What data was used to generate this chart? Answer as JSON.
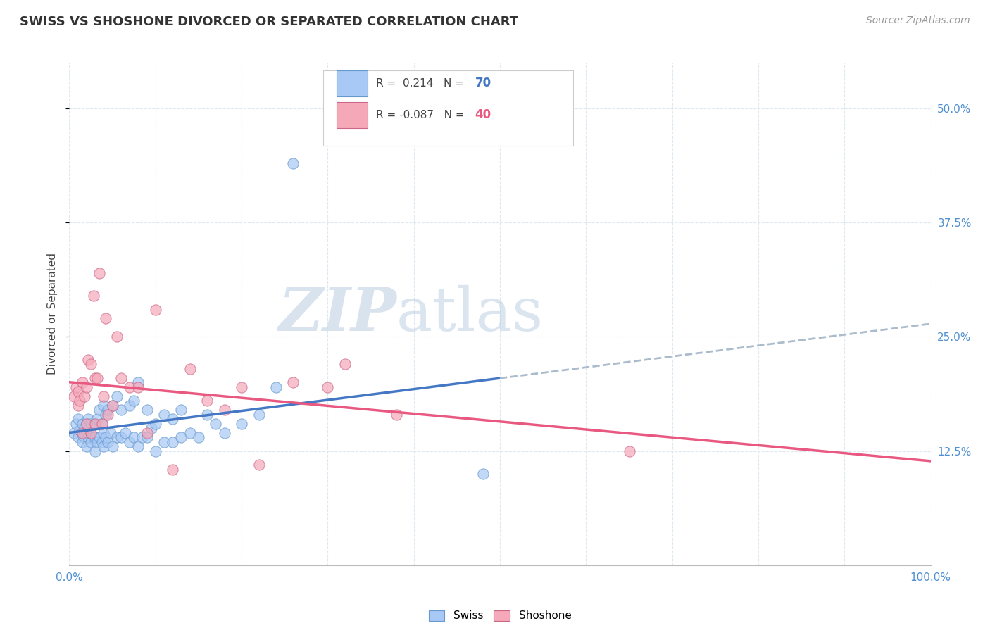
{
  "title": "SWISS VS SHOSHONE DIVORCED OR SEPARATED CORRELATION CHART",
  "source_text": "Source: ZipAtlas.com",
  "ylabel": "Divorced or Separated",
  "xlim": [
    0.0,
    1.0
  ],
  "ylim": [
    0.0,
    0.55
  ],
  "ytick_values": [
    0.125,
    0.25,
    0.375,
    0.5
  ],
  "ytick_labels": [
    "12.5%",
    "25.0%",
    "37.5%",
    "50.0%"
  ],
  "xtick_values": [
    0.0,
    0.1,
    0.2,
    0.3,
    0.4,
    0.5,
    0.6,
    0.7,
    0.8,
    0.9,
    1.0
  ],
  "xtick_show": [
    0.0,
    1.0
  ],
  "legend_r_swiss": "0.214",
  "legend_n_swiss": "70",
  "legend_r_shoshone": "-0.087",
  "legend_n_shoshone": "40",
  "swiss_color": "#a8c8f5",
  "shoshone_color": "#f5a8b8",
  "swiss_line_color": "#4478c4",
  "shoshone_line_color": "#e85880",
  "dashed_line_color": "#aabbcc",
  "background_color": "#ffffff",
  "grid_color": "#dde8f0",
  "watermark_zip": "ZIP",
  "watermark_atlas": "atlas",
  "swiss_scatter_x": [
    0.005,
    0.008,
    0.01,
    0.01,
    0.012,
    0.015,
    0.015,
    0.016,
    0.018,
    0.02,
    0.02,
    0.02,
    0.022,
    0.022,
    0.025,
    0.025,
    0.025,
    0.028,
    0.03,
    0.03,
    0.03,
    0.032,
    0.032,
    0.035,
    0.035,
    0.038,
    0.038,
    0.04,
    0.04,
    0.04,
    0.042,
    0.042,
    0.045,
    0.045,
    0.048,
    0.05,
    0.05,
    0.055,
    0.055,
    0.06,
    0.06,
    0.065,
    0.07,
    0.07,
    0.075,
    0.075,
    0.08,
    0.08,
    0.085,
    0.09,
    0.09,
    0.095,
    0.1,
    0.1,
    0.11,
    0.11,
    0.12,
    0.12,
    0.13,
    0.13,
    0.14,
    0.15,
    0.16,
    0.17,
    0.18,
    0.2,
    0.22,
    0.24,
    0.26,
    0.48
  ],
  "swiss_scatter_y": [
    0.145,
    0.155,
    0.14,
    0.16,
    0.148,
    0.135,
    0.155,
    0.142,
    0.15,
    0.13,
    0.145,
    0.155,
    0.14,
    0.16,
    0.135,
    0.145,
    0.155,
    0.14,
    0.125,
    0.14,
    0.155,
    0.135,
    0.16,
    0.14,
    0.17,
    0.135,
    0.155,
    0.13,
    0.145,
    0.175,
    0.14,
    0.165,
    0.135,
    0.17,
    0.145,
    0.13,
    0.175,
    0.14,
    0.185,
    0.14,
    0.17,
    0.145,
    0.135,
    0.175,
    0.14,
    0.18,
    0.13,
    0.2,
    0.14,
    0.14,
    0.17,
    0.15,
    0.125,
    0.155,
    0.135,
    0.165,
    0.135,
    0.16,
    0.14,
    0.17,
    0.145,
    0.14,
    0.165,
    0.155,
    0.145,
    0.155,
    0.165,
    0.195,
    0.44,
    0.1
  ],
  "shoshone_scatter_x": [
    0.005,
    0.008,
    0.01,
    0.01,
    0.012,
    0.015,
    0.015,
    0.018,
    0.02,
    0.02,
    0.022,
    0.025,
    0.025,
    0.028,
    0.03,
    0.03,
    0.032,
    0.035,
    0.038,
    0.04,
    0.042,
    0.045,
    0.05,
    0.055,
    0.06,
    0.07,
    0.08,
    0.09,
    0.1,
    0.12,
    0.14,
    0.16,
    0.18,
    0.2,
    0.22,
    0.26,
    0.3,
    0.32,
    0.38,
    0.65
  ],
  "shoshone_scatter_y": [
    0.185,
    0.195,
    0.175,
    0.19,
    0.18,
    0.145,
    0.2,
    0.185,
    0.155,
    0.195,
    0.225,
    0.145,
    0.22,
    0.295,
    0.155,
    0.205,
    0.205,
    0.32,
    0.155,
    0.185,
    0.27,
    0.165,
    0.175,
    0.25,
    0.205,
    0.195,
    0.195,
    0.145,
    0.28,
    0.105,
    0.215,
    0.18,
    0.17,
    0.195,
    0.11,
    0.2,
    0.195,
    0.22,
    0.165,
    0.125
  ]
}
